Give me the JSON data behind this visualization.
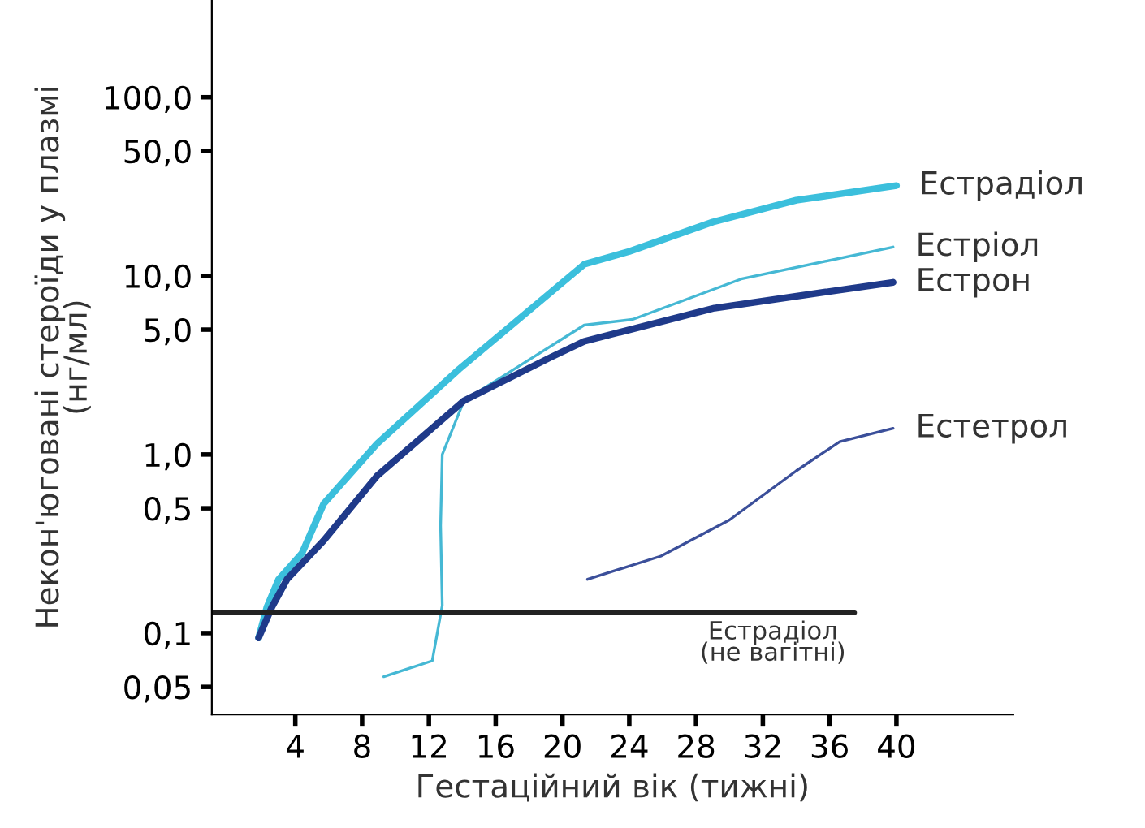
{
  "chart_data": {
    "type": "line",
    "xlabel": "Гестаційний вік (тижні)",
    "ylabel": "Некон'юговані стероїди у плазмі\n(нг/мл)",
    "log": "y",
    "xlim": [
      -1,
      47
    ],
    "xticks": [
      4,
      8,
      12,
      16,
      20,
      24,
      28,
      32,
      36,
      40
    ],
    "ylim": [
      0.035,
      350
    ],
    "yticks": [
      {
        "value": 0.05,
        "label": "0,05"
      },
      {
        "value": 0.1,
        "label": "0,1"
      },
      {
        "value": 0.5,
        "label": "0,5"
      },
      {
        "value": 1,
        "label": "1,0"
      },
      {
        "value": 5,
        "label": "5,0"
      },
      {
        "value": 10,
        "label": "10,0"
      },
      {
        "value": 50,
        "label": "50,0"
      },
      {
        "value": 100,
        "label": "100,0"
      }
    ],
    "grid": false,
    "legend": false,
    "marker": "none",
    "line_style": "solid",
    "series": [
      {
        "name": "Естрадіол",
        "color": "#3bbfdc",
        "x": [
          1.8,
          2.3,
          3,
          4.4,
          5.7,
          8.9,
          13.8,
          21.3,
          24,
          29,
          34,
          40
        ],
        "values": [
          0.094,
          0.14,
          0.2,
          0.28,
          0.53,
          1.15,
          3.0,
          11.6,
          13.7,
          20,
          26.5,
          32
        ]
      },
      {
        "name": "Естріол",
        "color": "#45b8d4",
        "x": [
          9.3,
          12.2,
          12.8,
          12.7,
          12.8,
          14.1,
          17.1,
          21.3,
          24.2,
          30.7,
          39.8
        ],
        "values": [
          0.057,
          0.07,
          0.143,
          0.4,
          1.0,
          2.0,
          3.0,
          5.3,
          5.7,
          9.6,
          14.5
        ]
      },
      {
        "name": "Естрон",
        "color": "#1f3a8a",
        "x": [
          1.8,
          2.6,
          3.5,
          5.7,
          8.9,
          14.1,
          19.3,
          21.3,
          29.1,
          39.8
        ],
        "values": [
          0.094,
          0.14,
          0.2,
          0.33,
          0.76,
          2.0,
          3.5,
          4.3,
          6.6,
          9.2
        ]
      },
      {
        "name": "Естетрол",
        "color": "#3b4f9a",
        "x": [
          21.5,
          25.9,
          30,
          34,
          36.6,
          39.8
        ],
        "values": [
          0.2,
          0.27,
          0.43,
          0.81,
          1.18,
          1.4
        ]
      },
      {
        "color": "#222222",
        "x": [
          -1,
          37.5
        ],
        "values": [
          0.13,
          0.13
        ]
      }
    ],
    "annotations": [
      "Естрадіол\n(не вагітні)"
    ]
  }
}
